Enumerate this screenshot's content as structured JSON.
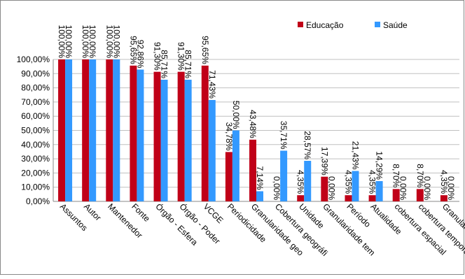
{
  "chart_data": {
    "type": "bar",
    "categories": [
      "Assuntos",
      "Autor",
      "Mantenedor",
      "Fonte",
      "Órgão - Esfera",
      "Órgão - Poder",
      "VCGE",
      "Periodicidade",
      "Granularidade geo",
      "Cobertura geográfi",
      "Unidade",
      "Granularidade tem",
      "Período",
      "Atualidade",
      "cobertura espacial",
      "cobertura temporal",
      "Granularidade"
    ],
    "series": [
      {
        "name": "Educação",
        "color": "#c00018",
        "values": [
          100,
          100,
          100,
          95.65,
          91.3,
          91.3,
          95.65,
          34.78,
          43.48,
          0,
          4.35,
          17.39,
          4.35,
          4.35,
          8.7,
          8.7,
          4.35
        ],
        "value_labels": [
          "100,00%",
          "100,00%",
          "100,00%",
          "95,65%",
          "91,30%",
          "91,30%",
          "95,65%",
          "34,78%",
          "43,48%",
          "0,00%",
          "4,35%",
          "17,39%",
          "4,35%",
          "4,35%",
          "8,70%",
          "8,70%",
          "4,35%"
        ]
      },
      {
        "name": "Saúde",
        "color": "#3399ff",
        "values": [
          100,
          100,
          100,
          92.86,
          85.71,
          85.71,
          71.43,
          50.0,
          7.14,
          35.71,
          28.57,
          0,
          21.43,
          14.29,
          0,
          0,
          0
        ],
        "value_labels": [
          "100,00%",
          "100,00%",
          "100,00%",
          "92,86%",
          "85,71%",
          "85,71%",
          "71,43%",
          "50,00%",
          "7,14%",
          "35,71%",
          "28,57%",
          "0,00%",
          "21,43%",
          "14,29%",
          "0,00%",
          "0,00%",
          "0,00%"
        ]
      }
    ],
    "ylim": [
      0,
      100
    ],
    "yticks": [
      {
        "value": 0,
        "label": "0,00%"
      },
      {
        "value": 10,
        "label": "10,00%"
      },
      {
        "value": 20,
        "label": "20,00%"
      },
      {
        "value": 30,
        "label": "30,00%"
      },
      {
        "value": 40,
        "label": "40,00%"
      },
      {
        "value": 50,
        "label": "50,00%"
      },
      {
        "value": 60,
        "label": "60,00%"
      },
      {
        "value": 70,
        "label": "70,00%"
      },
      {
        "value": 80,
        "label": "80,00%"
      },
      {
        "value": 90,
        "label": "90,00%"
      },
      {
        "value": 100,
        "label": "100,00%"
      }
    ],
    "grid": true,
    "legend": "top-right"
  }
}
